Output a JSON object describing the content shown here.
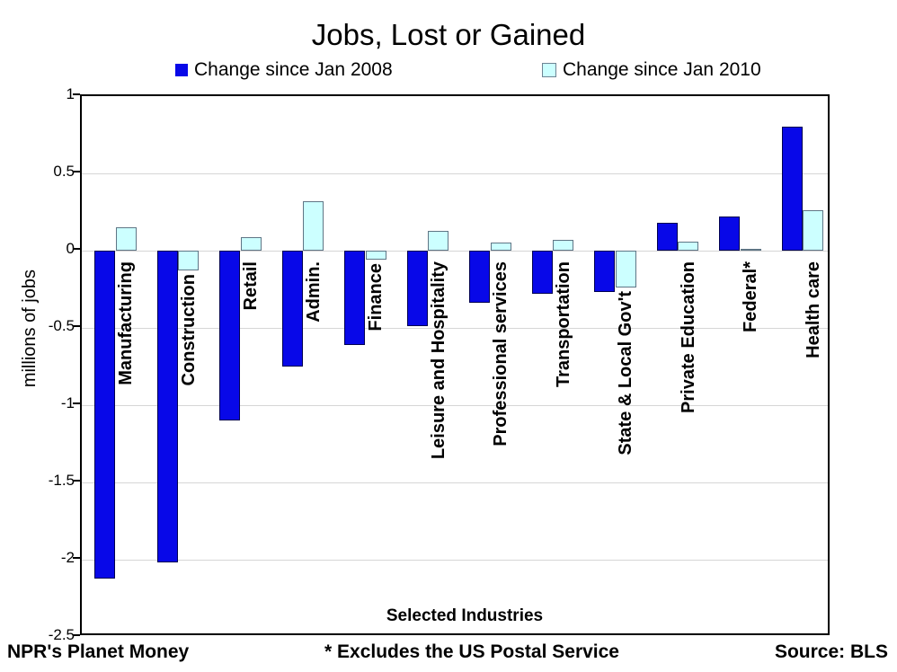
{
  "title": "Jobs, Lost or Gained",
  "legend": [
    {
      "label": "Change since Jan 2008",
      "color": "#0808e8"
    },
    {
      "label": "Change since Jan 2010",
      "color": "#ccffff"
    }
  ],
  "footer": {
    "left": "NPR's Planet Money",
    "center": "* Excludes the US Postal Service",
    "right": "Source: BLS"
  },
  "colors": {
    "series_2008": "#0808e8",
    "series_2010_fill": "#ccffff",
    "series_2010_border": "#5f7585",
    "gridline": "#d6d6d6",
    "axis": "#000000"
  },
  "chart_data": {
    "type": "bar",
    "title": "Jobs, Lost or Gained",
    "xlabel": "Selected Industries",
    "ylabel": "millions of jobs",
    "ylim": [
      -2.5,
      1
    ],
    "ytick_step": 0.5,
    "yticks": [
      1,
      0.5,
      0,
      -0.5,
      -1,
      -1.5,
      -2,
      -2.5
    ],
    "ytick_labels": [
      "1",
      "0.5",
      "0",
      "-0.5",
      "-1",
      "-1.5",
      "-2",
      "-2.5"
    ],
    "grid": true,
    "legend_position": "top",
    "categories": [
      "Manufacturing",
      "Construction",
      "Retail",
      "Admin.",
      "Finance",
      "Leisure and Hospitality",
      "Professional services",
      "Transportation",
      "State & Local Gov't",
      "Private Education",
      "Federal*",
      "Health care"
    ],
    "series": [
      {
        "name": "Change since Jan 2008",
        "values": [
          -2.12,
          -2.02,
          -1.1,
          -0.75,
          -0.61,
          -0.49,
          -0.34,
          -0.28,
          -0.27,
          0.18,
          0.22,
          0.8
        ]
      },
      {
        "name": "Change since Jan 2010",
        "values": [
          0.15,
          -0.13,
          0.09,
          0.32,
          -0.06,
          0.13,
          0.05,
          0.07,
          -0.24,
          0.06,
          0.01,
          0.26
        ]
      }
    ]
  }
}
